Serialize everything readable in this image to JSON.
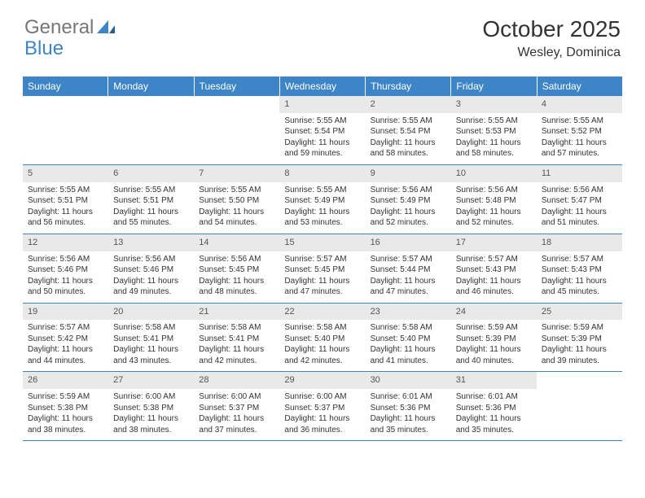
{
  "brand": {
    "part1": "General",
    "part2": "Blue"
  },
  "colors": {
    "accent": "#3d85c6",
    "header_bg": "#3d85c6",
    "header_text": "#ffffff",
    "daynum_bg": "#e9e9e9",
    "text": "#333333",
    "logo_gray": "#777777"
  },
  "title": "October 2025",
  "location": "Wesley, Dominica",
  "day_names": [
    "Sunday",
    "Monday",
    "Tuesday",
    "Wednesday",
    "Thursday",
    "Friday",
    "Saturday"
  ],
  "weeks": [
    [
      {
        "n": "",
        "sr": "",
        "ss": "",
        "dl": ""
      },
      {
        "n": "",
        "sr": "",
        "ss": "",
        "dl": ""
      },
      {
        "n": "",
        "sr": "",
        "ss": "",
        "dl": ""
      },
      {
        "n": "1",
        "sr": "Sunrise: 5:55 AM",
        "ss": "Sunset: 5:54 PM",
        "dl": "Daylight: 11 hours and 59 minutes."
      },
      {
        "n": "2",
        "sr": "Sunrise: 5:55 AM",
        "ss": "Sunset: 5:54 PM",
        "dl": "Daylight: 11 hours and 58 minutes."
      },
      {
        "n": "3",
        "sr": "Sunrise: 5:55 AM",
        "ss": "Sunset: 5:53 PM",
        "dl": "Daylight: 11 hours and 58 minutes."
      },
      {
        "n": "4",
        "sr": "Sunrise: 5:55 AM",
        "ss": "Sunset: 5:52 PM",
        "dl": "Daylight: 11 hours and 57 minutes."
      }
    ],
    [
      {
        "n": "5",
        "sr": "Sunrise: 5:55 AM",
        "ss": "Sunset: 5:51 PM",
        "dl": "Daylight: 11 hours and 56 minutes."
      },
      {
        "n": "6",
        "sr": "Sunrise: 5:55 AM",
        "ss": "Sunset: 5:51 PM",
        "dl": "Daylight: 11 hours and 55 minutes."
      },
      {
        "n": "7",
        "sr": "Sunrise: 5:55 AM",
        "ss": "Sunset: 5:50 PM",
        "dl": "Daylight: 11 hours and 54 minutes."
      },
      {
        "n": "8",
        "sr": "Sunrise: 5:55 AM",
        "ss": "Sunset: 5:49 PM",
        "dl": "Daylight: 11 hours and 53 minutes."
      },
      {
        "n": "9",
        "sr": "Sunrise: 5:56 AM",
        "ss": "Sunset: 5:49 PM",
        "dl": "Daylight: 11 hours and 52 minutes."
      },
      {
        "n": "10",
        "sr": "Sunrise: 5:56 AM",
        "ss": "Sunset: 5:48 PM",
        "dl": "Daylight: 11 hours and 52 minutes."
      },
      {
        "n": "11",
        "sr": "Sunrise: 5:56 AM",
        "ss": "Sunset: 5:47 PM",
        "dl": "Daylight: 11 hours and 51 minutes."
      }
    ],
    [
      {
        "n": "12",
        "sr": "Sunrise: 5:56 AM",
        "ss": "Sunset: 5:46 PM",
        "dl": "Daylight: 11 hours and 50 minutes."
      },
      {
        "n": "13",
        "sr": "Sunrise: 5:56 AM",
        "ss": "Sunset: 5:46 PM",
        "dl": "Daylight: 11 hours and 49 minutes."
      },
      {
        "n": "14",
        "sr": "Sunrise: 5:56 AM",
        "ss": "Sunset: 5:45 PM",
        "dl": "Daylight: 11 hours and 48 minutes."
      },
      {
        "n": "15",
        "sr": "Sunrise: 5:57 AM",
        "ss": "Sunset: 5:45 PM",
        "dl": "Daylight: 11 hours and 47 minutes."
      },
      {
        "n": "16",
        "sr": "Sunrise: 5:57 AM",
        "ss": "Sunset: 5:44 PM",
        "dl": "Daylight: 11 hours and 47 minutes."
      },
      {
        "n": "17",
        "sr": "Sunrise: 5:57 AM",
        "ss": "Sunset: 5:43 PM",
        "dl": "Daylight: 11 hours and 46 minutes."
      },
      {
        "n": "18",
        "sr": "Sunrise: 5:57 AM",
        "ss": "Sunset: 5:43 PM",
        "dl": "Daylight: 11 hours and 45 minutes."
      }
    ],
    [
      {
        "n": "19",
        "sr": "Sunrise: 5:57 AM",
        "ss": "Sunset: 5:42 PM",
        "dl": "Daylight: 11 hours and 44 minutes."
      },
      {
        "n": "20",
        "sr": "Sunrise: 5:58 AM",
        "ss": "Sunset: 5:41 PM",
        "dl": "Daylight: 11 hours and 43 minutes."
      },
      {
        "n": "21",
        "sr": "Sunrise: 5:58 AM",
        "ss": "Sunset: 5:41 PM",
        "dl": "Daylight: 11 hours and 42 minutes."
      },
      {
        "n": "22",
        "sr": "Sunrise: 5:58 AM",
        "ss": "Sunset: 5:40 PM",
        "dl": "Daylight: 11 hours and 42 minutes."
      },
      {
        "n": "23",
        "sr": "Sunrise: 5:58 AM",
        "ss": "Sunset: 5:40 PM",
        "dl": "Daylight: 11 hours and 41 minutes."
      },
      {
        "n": "24",
        "sr": "Sunrise: 5:59 AM",
        "ss": "Sunset: 5:39 PM",
        "dl": "Daylight: 11 hours and 40 minutes."
      },
      {
        "n": "25",
        "sr": "Sunrise: 5:59 AM",
        "ss": "Sunset: 5:39 PM",
        "dl": "Daylight: 11 hours and 39 minutes."
      }
    ],
    [
      {
        "n": "26",
        "sr": "Sunrise: 5:59 AM",
        "ss": "Sunset: 5:38 PM",
        "dl": "Daylight: 11 hours and 38 minutes."
      },
      {
        "n": "27",
        "sr": "Sunrise: 6:00 AM",
        "ss": "Sunset: 5:38 PM",
        "dl": "Daylight: 11 hours and 38 minutes."
      },
      {
        "n": "28",
        "sr": "Sunrise: 6:00 AM",
        "ss": "Sunset: 5:37 PM",
        "dl": "Daylight: 11 hours and 37 minutes."
      },
      {
        "n": "29",
        "sr": "Sunrise: 6:00 AM",
        "ss": "Sunset: 5:37 PM",
        "dl": "Daylight: 11 hours and 36 minutes."
      },
      {
        "n": "30",
        "sr": "Sunrise: 6:01 AM",
        "ss": "Sunset: 5:36 PM",
        "dl": "Daylight: 11 hours and 35 minutes."
      },
      {
        "n": "31",
        "sr": "Sunrise: 6:01 AM",
        "ss": "Sunset: 5:36 PM",
        "dl": "Daylight: 11 hours and 35 minutes."
      },
      {
        "n": "",
        "sr": "",
        "ss": "",
        "dl": ""
      }
    ]
  ]
}
